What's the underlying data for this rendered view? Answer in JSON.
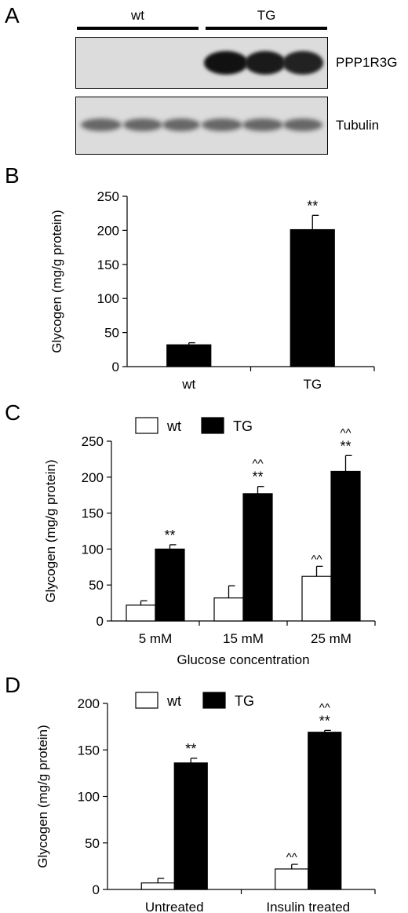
{
  "panels": {
    "a": "A",
    "b": "B",
    "c": "C",
    "d": "D"
  },
  "blot": {
    "groups": [
      "wt",
      "TG"
    ],
    "rows": [
      "PPP1R3G",
      "Tubulin"
    ]
  },
  "chart_data": [
    {
      "type": "bar",
      "panel": "B",
      "categories": [
        "wt",
        "TG"
      ],
      "values": [
        32,
        201
      ],
      "errors": [
        3,
        21
      ],
      "colors": [
        "#000000",
        "#000000"
      ],
      "annotations": [
        "",
        "**"
      ],
      "ylabel": "Glycogen (mg/g protein)",
      "xlabel": "",
      "ylim": [
        0,
        250
      ],
      "yticks": [
        0,
        50,
        100,
        150,
        200,
        250
      ]
    },
    {
      "type": "bar",
      "panel": "C",
      "categories": [
        "5 mM",
        "15 mM",
        "25 mM"
      ],
      "series": [
        {
          "name": "wt",
          "color": "#ffffff",
          "values": [
            22,
            32,
            62
          ],
          "errors": [
            6,
            17,
            14
          ],
          "annotations": [
            "",
            "",
            "^^"
          ]
        },
        {
          "name": "TG",
          "color": "#000000",
          "values": [
            100,
            177,
            208
          ],
          "errors": [
            6,
            10,
            22
          ],
          "annotations": [
            "**",
            "^^\n**",
            "^^\n**"
          ]
        }
      ],
      "ylabel": "Glycogen (mg/g protein)",
      "xlabel": "Glucose concentration",
      "ylim": [
        0,
        250
      ],
      "yticks": [
        0,
        50,
        100,
        150,
        200,
        250
      ],
      "legend": "top"
    },
    {
      "type": "bar",
      "panel": "D",
      "categories": [
        "Untreated",
        "Insulin treated"
      ],
      "series": [
        {
          "name": "wt",
          "color": "#ffffff",
          "values": [
            7,
            22
          ],
          "errors": [
            5,
            5
          ],
          "annotations": [
            "",
            "^^"
          ]
        },
        {
          "name": "TG",
          "color": "#000000",
          "values": [
            136,
            169
          ],
          "errors": [
            5,
            2
          ],
          "annotations": [
            "**",
            "^^\n**"
          ]
        }
      ],
      "ylabel": "Glycogen (mg/g protein)",
      "xlabel": "",
      "ylim": [
        0,
        200
      ],
      "yticks": [
        0,
        50,
        100,
        150,
        200
      ],
      "legend": "top"
    }
  ]
}
